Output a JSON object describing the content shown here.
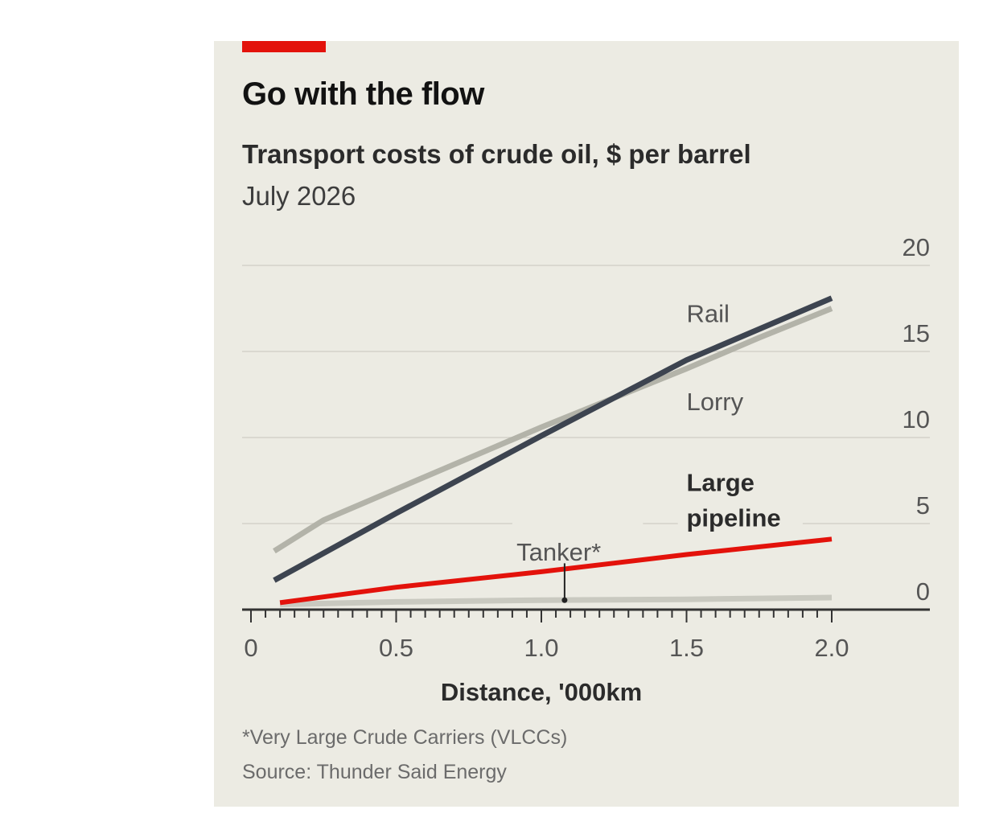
{
  "header": {
    "title": "Go with the flow",
    "subtitle": "Transport costs of crude oil, $ per barrel",
    "period": "July 2026"
  },
  "footer": {
    "footnote": "*Very Large Crude Carriers (VLCCs)",
    "source": "Source: Thunder Said Energy"
  },
  "colors": {
    "background": "#ecebe3",
    "accent": "#e3120b",
    "rail": "#b3b3a9",
    "lorry": "#3d4450",
    "pipeline": "#e3120b",
    "tanker": "#c9c9c0",
    "grid": "#d3d2c9",
    "axis": "#333333"
  },
  "chart_data": {
    "type": "line",
    "xlabel": "Distance, '000km",
    "ylabel": "",
    "xlim": [
      0,
      2.3
    ],
    "ylim": [
      0,
      20
    ],
    "x_ticks": [
      "0",
      "0.5",
      "1.0",
      "1.5",
      "2.0"
    ],
    "x_tick_values": [
      0,
      0.5,
      1.0,
      1.5,
      2.0
    ],
    "y_ticks": [
      "0",
      "5",
      "10",
      "15",
      "20"
    ],
    "y_tick_values": [
      0,
      5,
      10,
      15,
      20
    ],
    "y_axis_side": "right",
    "grid": "horizontal",
    "series": [
      {
        "name": "Rail",
        "key": "rail",
        "x": [
          0.08,
          0.25,
          0.5,
          0.75,
          1.0,
          1.25,
          1.5,
          1.75,
          2.0
        ],
        "y": [
          3.4,
          5.2,
          7.0,
          8.8,
          10.6,
          12.3,
          14.0,
          15.8,
          17.5
        ]
      },
      {
        "name": "Lorry",
        "key": "lorry",
        "x": [
          0.08,
          0.5,
          1.0,
          1.5,
          2.0
        ],
        "y": [
          1.7,
          5.6,
          10.1,
          14.5,
          18.1
        ]
      },
      {
        "name": "Large pipeline",
        "key": "pipeline",
        "x": [
          0.1,
          0.5,
          1.0,
          1.5,
          2.0
        ],
        "y": [
          0.4,
          1.3,
          2.2,
          3.2,
          4.1
        ]
      },
      {
        "name": "Tanker*",
        "key": "tanker",
        "x": [
          0.1,
          0.5,
          1.0,
          1.5,
          2.0
        ],
        "y": [
          0.3,
          0.45,
          0.55,
          0.6,
          0.7
        ]
      }
    ],
    "labels": {
      "rail": "Rail",
      "lorry": "Lorry",
      "pipeline_line1": "Large",
      "pipeline_line2": "pipeline",
      "tanker": "Tanker*"
    },
    "label_positions": {
      "rail": [
        1.5,
        16.7
      ],
      "lorry": [
        1.5,
        11.6
      ],
      "pipeline": [
        1.5,
        6.9
      ],
      "tanker": [
        1.06,
        4.9
      ]
    },
    "tanker_pointer": {
      "x": 1.08,
      "y_from": 4.0,
      "y_to": 0.55
    }
  }
}
